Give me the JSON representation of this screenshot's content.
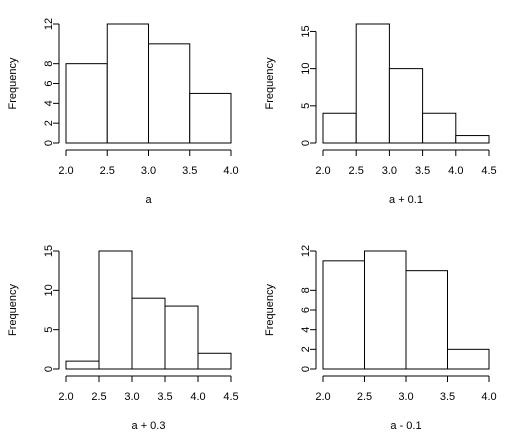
{
  "chart_data": [
    {
      "type": "bar",
      "xlabel": "a",
      "ylabel": "Frequency",
      "x_ticks": [
        "2.0",
        "2.5",
        "3.0",
        "3.5",
        "4.0"
      ],
      "y_ticks": [
        "0",
        "2",
        "4",
        "6",
        "8",
        "12"
      ],
      "ylim": [
        0,
        12
      ],
      "bins": [
        [
          2.0,
          2.5
        ],
        [
          2.5,
          3.0
        ],
        [
          3.0,
          3.5
        ],
        [
          3.5,
          4.0
        ]
      ],
      "values": [
        8,
        12,
        10,
        5
      ]
    },
    {
      "type": "bar",
      "xlabel": "a + 0.1",
      "ylabel": "Frequency",
      "x_ticks": [
        "2.0",
        "2.5",
        "3.0",
        "3.5",
        "4.0",
        "4.5"
      ],
      "y_ticks": [
        "0",
        "5",
        "10",
        "15"
      ],
      "ylim": [
        0,
        16
      ],
      "bins": [
        [
          2.0,
          2.5
        ],
        [
          2.5,
          3.0
        ],
        [
          3.0,
          3.5
        ],
        [
          3.5,
          4.0
        ],
        [
          4.0,
          4.5
        ]
      ],
      "values": [
        4,
        16,
        10,
        4,
        1
      ]
    },
    {
      "type": "bar",
      "xlabel": "a + 0.3",
      "ylabel": "Frequency",
      "x_ticks": [
        "2.0",
        "2.5",
        "3.0",
        "3.5",
        "4.0",
        "4.5"
      ],
      "y_ticks": [
        "0",
        "5",
        "10",
        "15"
      ],
      "ylim": [
        0,
        15
      ],
      "bins": [
        [
          2.0,
          2.5
        ],
        [
          2.5,
          3.0
        ],
        [
          3.0,
          3.5
        ],
        [
          3.5,
          4.0
        ],
        [
          4.0,
          4.5
        ]
      ],
      "values": [
        1,
        15,
        9,
        8,
        2
      ]
    },
    {
      "type": "bar",
      "xlabel": "a - 0.1",
      "ylabel": "Frequency",
      "x_ticks": [
        "2.0",
        "2.5",
        "3.0",
        "3.5",
        "4.0"
      ],
      "y_ticks": [
        "0",
        "2",
        "4",
        "6",
        "8",
        "12"
      ],
      "ylim": [
        0,
        12
      ],
      "bins": [
        [
          2.0,
          2.5
        ],
        [
          2.5,
          3.0
        ],
        [
          3.0,
          3.5
        ],
        [
          3.5,
          4.0
        ]
      ],
      "values": [
        11,
        12,
        10,
        2
      ]
    }
  ]
}
